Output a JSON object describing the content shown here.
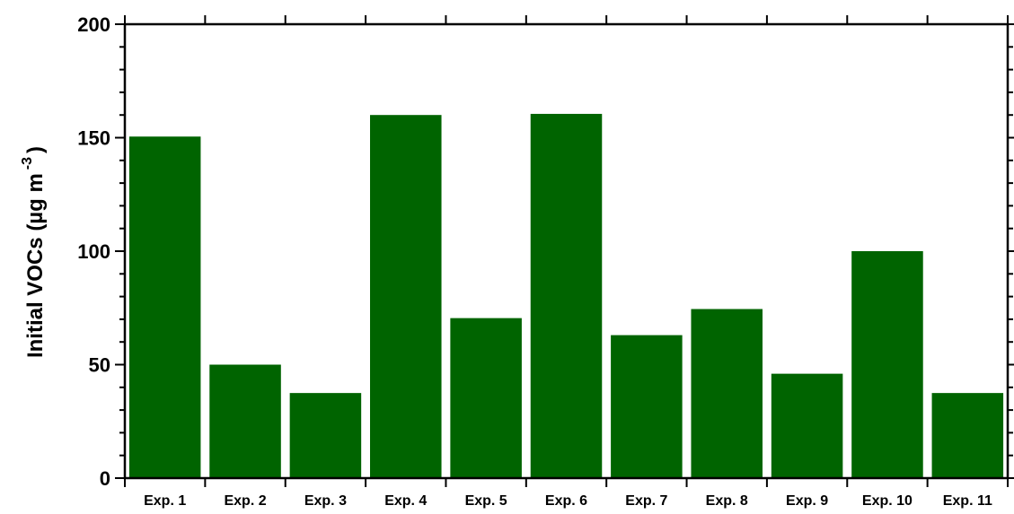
{
  "chart_data": {
    "type": "bar",
    "title": "",
    "xlabel": "",
    "ylabel": "Initial VOCs (µg m",
    "ylabel_superscript": "-3",
    "ylabel_close": ")",
    "categories": [
      "Exp. 1",
      "Exp. 2",
      "Exp. 3",
      "Exp. 4",
      "Exp. 5",
      "Exp. 6",
      "Exp. 7",
      "Exp. 8",
      "Exp. 9",
      "Exp. 10",
      "Exp. 11"
    ],
    "values": [
      150.5,
      50.0,
      37.5,
      160.0,
      70.5,
      160.5,
      63.0,
      74.5,
      46.0,
      100.0,
      37.5
    ],
    "ylim": [
      0,
      200
    ],
    "yticks": [
      0,
      50,
      100,
      150,
      200
    ],
    "ytick_labels": [
      "0",
      "50",
      "100",
      "150",
      "200"
    ],
    "bar_color": "#006400",
    "grid": false,
    "legend": "none"
  }
}
